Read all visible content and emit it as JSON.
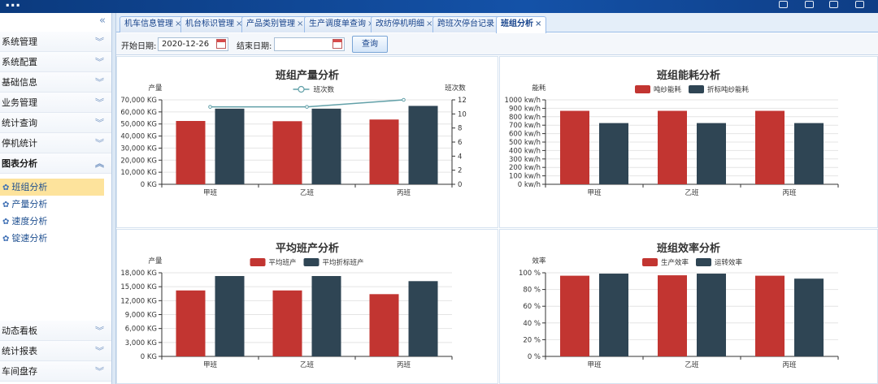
{
  "app": {
    "title": "..."
  },
  "sidebar": {
    "collapse_icon": "«",
    "menu": [
      {
        "label": "系统管理"
      },
      {
        "label": "系统配置"
      },
      {
        "label": "基础信息"
      },
      {
        "label": "业务管理"
      },
      {
        "label": "统计查询"
      },
      {
        "label": "停机统计"
      }
    ],
    "active_menu": {
      "label": "图表分析"
    },
    "submenu": [
      {
        "label": "班组分析",
        "active": true
      },
      {
        "label": "产量分析"
      },
      {
        "label": "速度分析"
      },
      {
        "label": "锭速分析"
      }
    ],
    "bottom_menu": [
      {
        "label": "动态看板"
      },
      {
        "label": "统计报表"
      },
      {
        "label": "车间盘存"
      }
    ]
  },
  "tabs": [
    {
      "label": "机车信息管理"
    },
    {
      "label": "机台标识管理"
    },
    {
      "label": "产品类别管理"
    },
    {
      "label": "生产调度单查询"
    },
    {
      "label": "改纺停机明细"
    },
    {
      "label": "跨班次停台记录"
    },
    {
      "label": "班组分析",
      "active": true
    }
  ],
  "filter": {
    "start_label": "开始日期:",
    "start_value": "2020-12-26",
    "end_label": "结束日期:",
    "end_value": "",
    "query_label": "查询"
  },
  "chart_data": [
    {
      "type": "bar",
      "title": "班组产量分析",
      "categories": [
        "甲班",
        "乙班",
        "丙班"
      ],
      "ylabel": "产量",
      "y2label": "班次数",
      "y_ticks": [
        "0 KG",
        "10,000 KG",
        "20,000 KG",
        "30,000 KG",
        "40,000 KG",
        "50,000 KG",
        "60,000 KG",
        "70,000 KG"
      ],
      "ylim": [
        0,
        70000
      ],
      "y2_ticks": [
        "0",
        "2",
        "4",
        "6",
        "8",
        "10",
        "12"
      ],
      "y2lim": [
        0,
        12
      ],
      "series": [
        {
          "values": [
            52500,
            52300,
            53700
          ],
          "color": "#c23531"
        },
        {
          "values": [
            62700,
            62700,
            65000
          ],
          "color": "#2f4554"
        }
      ],
      "line_series": {
        "name": "班次数",
        "values": [
          11,
          11,
          12
        ],
        "color": "#61a0a8"
      },
      "legend_position": "top-center"
    },
    {
      "type": "bar",
      "title": "班组能耗分析",
      "categories": [
        "甲班",
        "乙班",
        "丙班"
      ],
      "ylabel": "能耗",
      "y_ticks": [
        "0 kw/h",
        "100 kw/h",
        "200 kw/h",
        "300 kw/h",
        "400 kw/h",
        "500 kw/h",
        "600 kw/h",
        "700 kw/h",
        "800 kw/h",
        "900 kw/h",
        "1000 kw/h"
      ],
      "ylim": [
        0,
        1000
      ],
      "series": [
        {
          "name": "吨纱能耗",
          "values": [
            870,
            870,
            870
          ],
          "color": "#c23531"
        },
        {
          "name": "折标吨纱能耗",
          "values": [
            725,
            725,
            725
          ],
          "color": "#2f4554"
        }
      ],
      "legend_position": "top-center"
    },
    {
      "type": "bar",
      "title": "平均班产分析",
      "categories": [
        "甲班",
        "乙班",
        "丙班"
      ],
      "ylabel": "产量",
      "y_ticks": [
        "0 KG",
        "3,000 KG",
        "6,000 KG",
        "9,000 KG",
        "12,000 KG",
        "15,000 KG",
        "18,000 KG"
      ],
      "ylim": [
        0,
        18000
      ],
      "series": [
        {
          "name": "平均班产",
          "values": [
            14200,
            14200,
            13400
          ],
          "color": "#c23531"
        },
        {
          "name": "平均折标班产",
          "values": [
            17300,
            17300,
            16200
          ],
          "color": "#2f4554"
        }
      ],
      "legend_position": "top-center"
    },
    {
      "type": "bar",
      "title": "班组效率分析",
      "categories": [
        "甲班",
        "乙班",
        "丙班"
      ],
      "ylabel": "效率",
      "y_ticks": [
        "0 %",
        "20 %",
        "40 %",
        "60 %",
        "80 %",
        "100 %"
      ],
      "ylim": [
        0,
        100
      ],
      "series": [
        {
          "name": "生产效率",
          "values": [
            96.5,
            97,
            96.5
          ],
          "color": "#c23531"
        },
        {
          "name": "运转效率",
          "values": [
            99,
            99,
            93
          ],
          "color": "#2f4554"
        }
      ],
      "legend_position": "top-center"
    }
  ]
}
